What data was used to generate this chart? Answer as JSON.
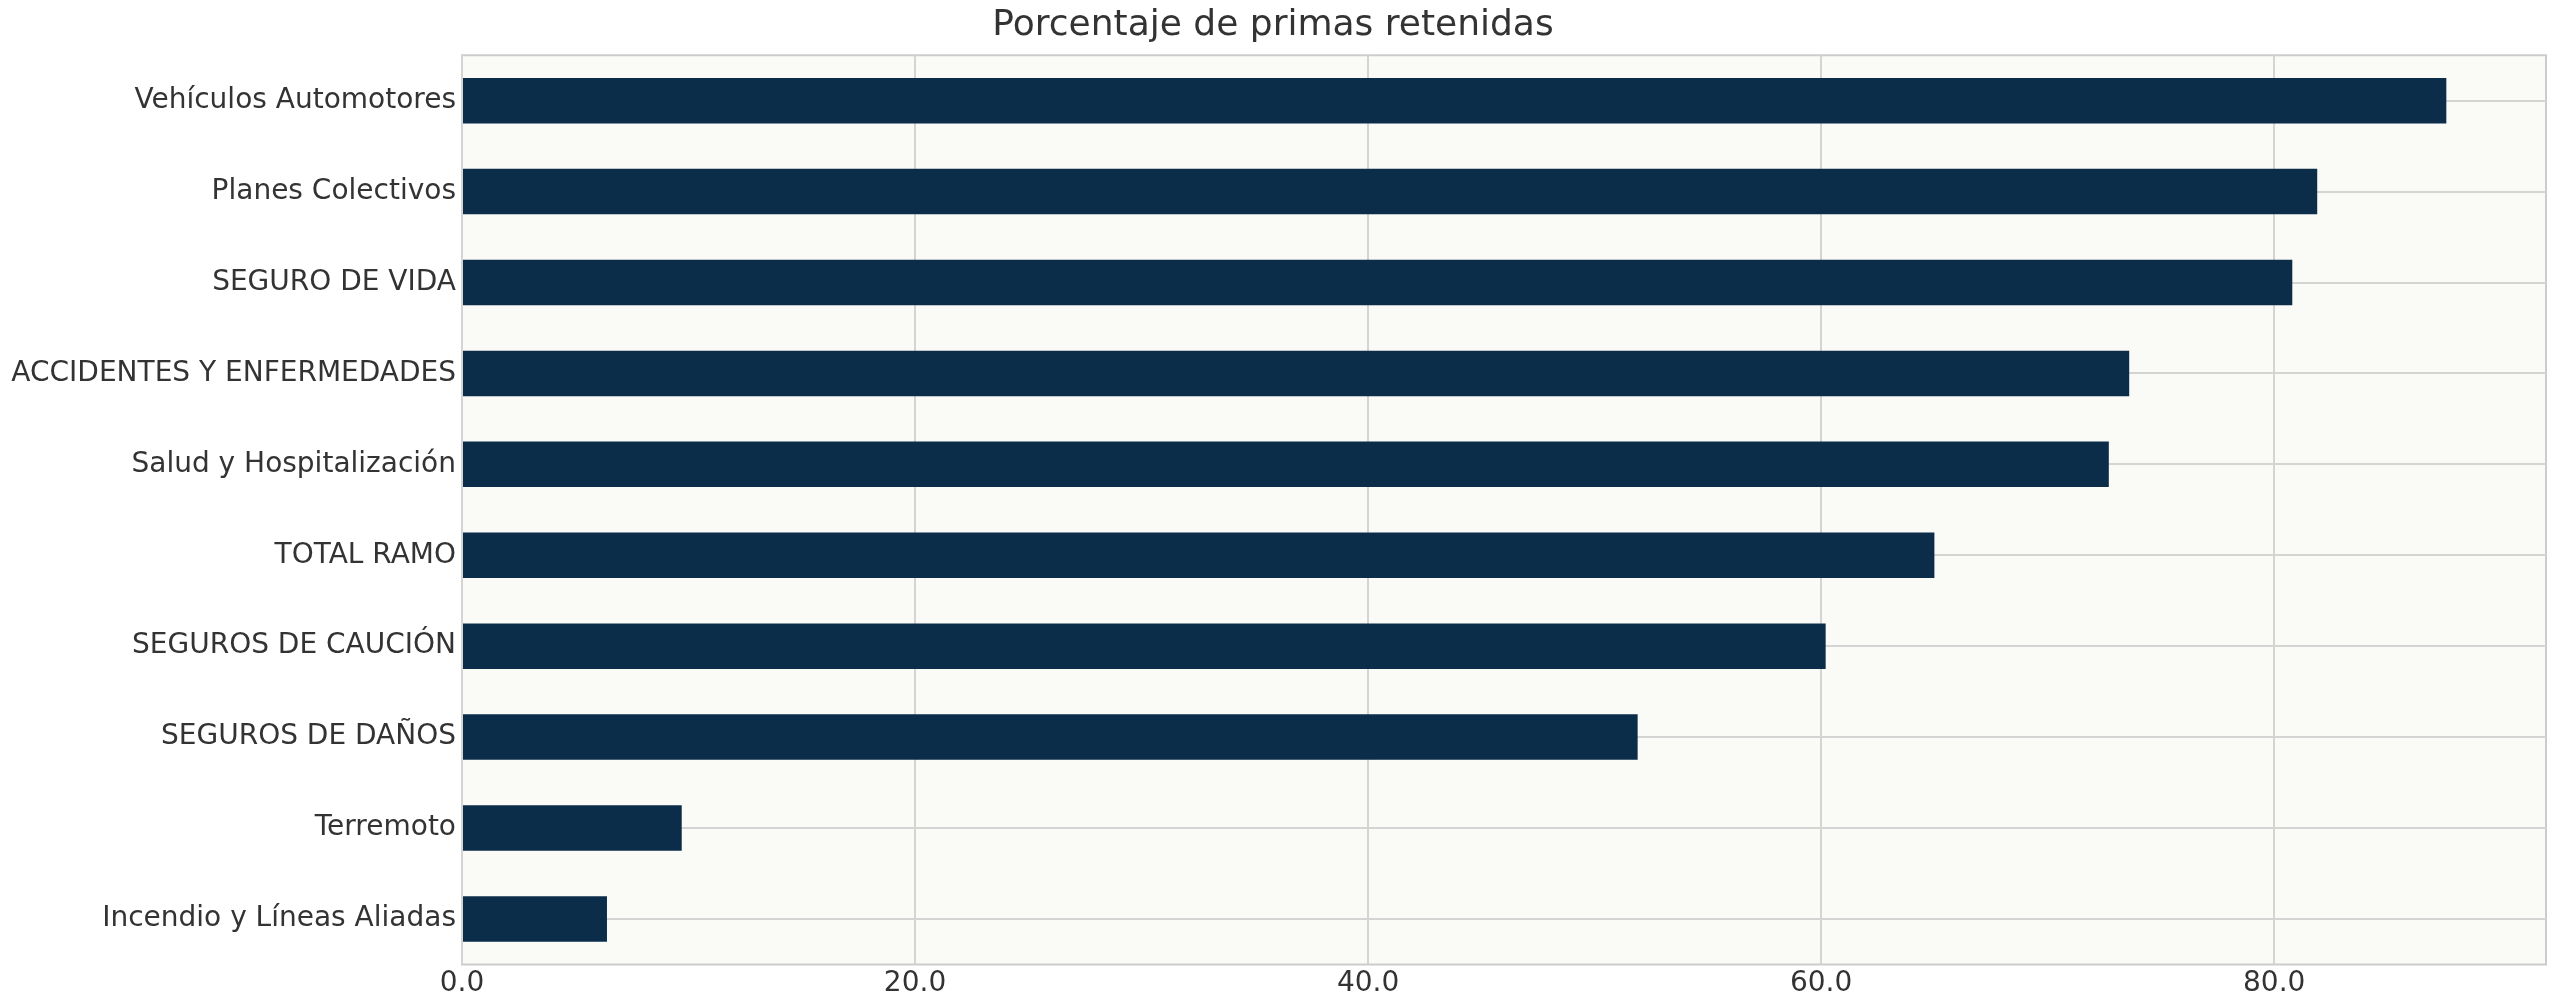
{
  "chart_data": {
    "type": "bar",
    "orientation": "horizontal",
    "title": "Porcentaje de primas retenidas",
    "categories": [
      "Vehículos Automotores",
      "Planes Colectivos",
      "SEGURO DE VIDA",
      "ACCIDENTES Y ENFERMEDADES",
      "Salud y Hospitalización",
      "TOTAL RAMO",
      "SEGUROS DE CAUCIÓN",
      "SEGUROS DE DAÑOS",
      "Terremoto",
      "Incendio y Líneas Aliadas"
    ],
    "values": [
      87.6,
      81.9,
      80.8,
      73.6,
      72.7,
      65.0,
      60.2,
      51.9,
      9.7,
      6.4
    ],
    "color": "#0c2d4a",
    "xlim": [
      0,
      92
    ],
    "xticks": [
      {
        "value": 0,
        "label": "0.0"
      },
      {
        "value": 20,
        "label": "20.0"
      },
      {
        "value": 40,
        "label": "40.0"
      },
      {
        "value": 60,
        "label": "60.0"
      },
      {
        "value": 80,
        "label": "80.0"
      }
    ],
    "grid": true
  }
}
